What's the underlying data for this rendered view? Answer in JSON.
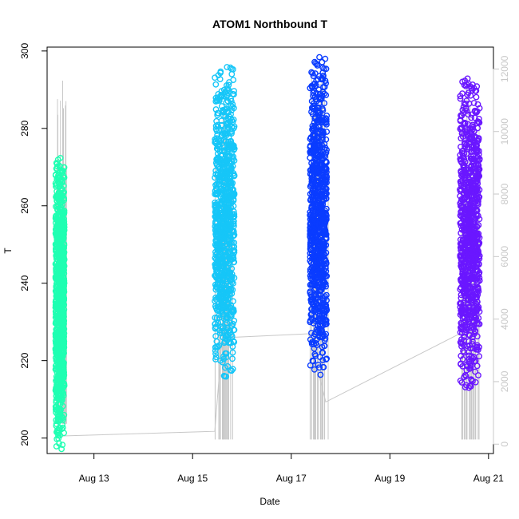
{
  "chart_data": {
    "type": "scatter",
    "title": "ATOM1 Northbound T",
    "xlabel": "Date",
    "ylabel": "T",
    "x_ticks": [
      "Aug 13",
      "Aug 15",
      "Aug 17",
      "Aug 19",
      "Aug 21"
    ],
    "x_tick_values": [
      13,
      15,
      17,
      19,
      21
    ],
    "xlim": [
      12.05,
      21.1
    ],
    "y_ticks": [
      200,
      220,
      240,
      260,
      280,
      300
    ],
    "ylim": [
      196,
      301
    ],
    "y2_ticks": [
      0,
      2000,
      4000,
      6000,
      8000,
      10000,
      12000
    ],
    "y2lim": [
      -300,
      12700
    ],
    "grid": false,
    "legend": "none",
    "colors": {
      "cluster_1": "#1fffb2",
      "cluster_2": "#16c6f8",
      "cluster_3": "#0a3cff",
      "cluster_4": "#6a17ff",
      "secondary_series": "#c8c8c8"
    },
    "series": [
      {
        "x_start": 12.22,
        "x_end": 12.4,
        "y_min": 197,
        "y_max": 273,
        "color": "#1fffb2"
      },
      {
        "x_start": 15.45,
        "x_end": 15.85,
        "y_min": 215,
        "y_max": 296,
        "color": "#16c6f8"
      },
      {
        "x_start": 17.38,
        "x_end": 17.72,
        "y_min": 216,
        "y_max": 299,
        "color": "#0a3cff"
      },
      {
        "x_start": 20.42,
        "x_end": 20.82,
        "y_min": 213,
        "y_max": 293,
        "color": "#6a17ff"
      }
    ],
    "secondary": {
      "axis": "right",
      "path": [
        [
          12.3,
          260
        ],
        [
          15.45,
          410
        ],
        [
          15.6,
          3400
        ],
        [
          17.35,
          3530
        ],
        [
          17.7,
          1350
        ],
        [
          20.5,
          3600
        ]
      ],
      "spikes": [
        {
          "x_start": 12.22,
          "x_end": 12.45,
          "y_base": 650,
          "y_top": 11650
        },
        {
          "x_start": 15.45,
          "x_end": 15.85,
          "y_base": 150,
          "y_top": 11000
        },
        {
          "x_start": 17.38,
          "x_end": 17.75,
          "y_base": 150,
          "y_top": 12300
        },
        {
          "x_start": 20.42,
          "x_end": 20.82,
          "y_base": 150,
          "y_top": 11800
        }
      ]
    }
  }
}
